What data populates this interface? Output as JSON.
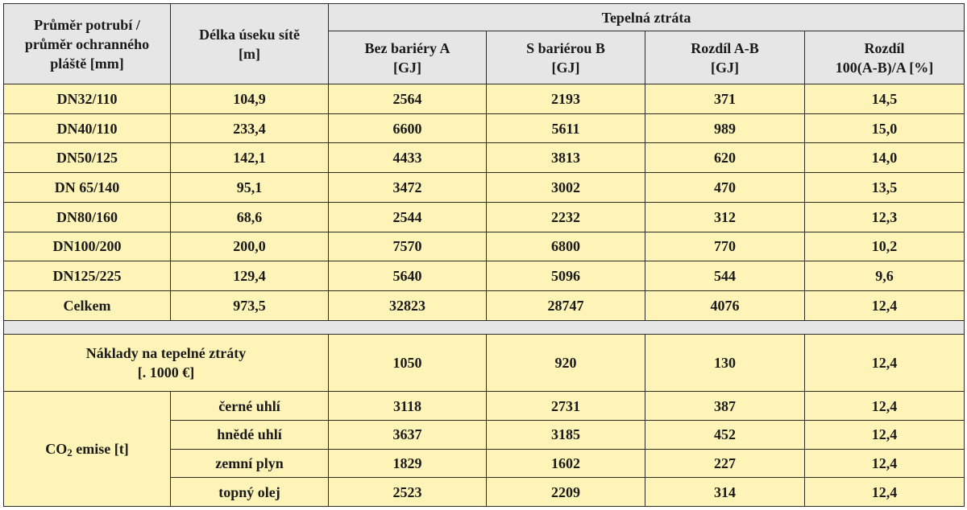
{
  "header": {
    "col_pipe": [
      "Průměr potrubí /",
      "průměr ochranného",
      "pláště [mm]"
    ],
    "col_length": [
      "Délka úseku sítě",
      "[m]"
    ],
    "group": "Tepelná ztráta",
    "col_a": [
      "Bez bariéry A",
      "[GJ]"
    ],
    "col_b": [
      "S bariérou B",
      "[GJ]"
    ],
    "col_diff": [
      "Rozdíl A-B",
      "[GJ]"
    ],
    "col_pct": [
      "Rozdíl",
      "100(A-B)/A [%]"
    ]
  },
  "rows": [
    {
      "pipe": "DN32/110",
      "length": "104,9",
      "a": "2564",
      "b": "2193",
      "diff": "371",
      "pct": "14,5"
    },
    {
      "pipe": "DN40/110",
      "length": "233,4",
      "a": "6600",
      "b": "5611",
      "diff": "989",
      "pct": "15,0"
    },
    {
      "pipe": "DN50/125",
      "length": "142,1",
      "a": "4433",
      "b": "3813",
      "diff": "620",
      "pct": "14,0"
    },
    {
      "pipe": "DN 65/140",
      "length": "95,1",
      "a": "3472",
      "b": "3002",
      "diff": "470",
      "pct": "13,5"
    },
    {
      "pipe": "DN80/160",
      "length": "68,6",
      "a": "2544",
      "b": "2232",
      "diff": "312",
      "pct": "12,3"
    },
    {
      "pipe": "DN100/200",
      "length": "200,0",
      "a": "7570",
      "b": "6800",
      "diff": "770",
      "pct": "10,2"
    },
    {
      "pipe": "DN125/225",
      "length": "129,4",
      "a": "5640",
      "b": "5096",
      "diff": "544",
      "pct": "9,6"
    }
  ],
  "total": {
    "pipe": "Celkem",
    "length": "973,5",
    "a": "32823",
    "b": "28747",
    "diff": "4076",
    "pct": "12,4"
  },
  "costs": {
    "label": [
      "Náklady na tepelné ztráty",
      "[. 1000 €]"
    ],
    "a": "1050",
    "b": "920",
    "diff": "130",
    "pct": "12,4"
  },
  "co2": {
    "label_pre": "CO",
    "label_sub": "2",
    "label_post": " emise [t]",
    "rows": [
      {
        "fuel": "černé uhlí",
        "a": "3118",
        "b": "2731",
        "diff": "387",
        "pct": "12,4"
      },
      {
        "fuel": "hnědé uhlí",
        "a": "3637",
        "b": "3185",
        "diff": "452",
        "pct": "12,4"
      },
      {
        "fuel": "zemní plyn",
        "a": "1829",
        "b": "1602",
        "diff": "227",
        "pct": "12,4"
      },
      {
        "fuel": "topný olej",
        "a": "2523",
        "b": "2209",
        "diff": "314",
        "pct": "12,4"
      }
    ]
  }
}
